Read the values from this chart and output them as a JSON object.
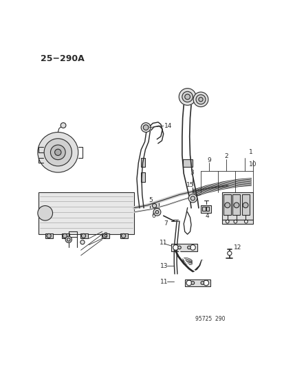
{
  "title": "25−290A",
  "footer": "95725  290",
  "bg_color": "#ffffff",
  "lc": "#2a2a2a",
  "lw": 0.8,
  "title_fontsize": 9,
  "label_fontsize": 6.5,
  "footer_fontsize": 5.5
}
